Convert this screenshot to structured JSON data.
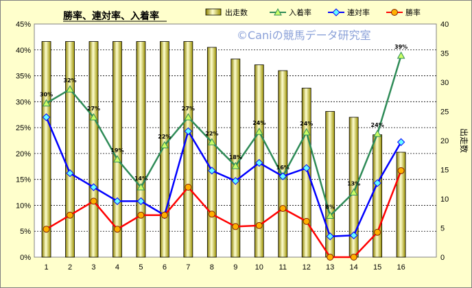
{
  "chart_data": {
    "type": "bar+line",
    "title": "勝率、連対率、入着率",
    "watermark": "©Caniの競馬データ研究室",
    "categories": [
      "1",
      "2",
      "3",
      "4",
      "5",
      "6",
      "7",
      "8",
      "9",
      "10",
      "11",
      "12",
      "13",
      "14",
      "15",
      "16"
    ],
    "bar_series": {
      "name": "出走数",
      "axis": "right",
      "values": [
        37,
        37,
        37,
        37,
        37,
        37,
        37,
        36,
        34,
        33,
        32,
        29,
        25,
        24,
        21,
        18
      ],
      "color": "#f0e68c"
    },
    "line_series": [
      {
        "name": "入着率",
        "color": "#2e8b57",
        "marker": "triangle",
        "values": [
          29.7,
          32.4,
          27.0,
          18.9,
          13.5,
          21.6,
          27.0,
          22.2,
          17.6,
          24.2,
          15.6,
          24.1,
          8.0,
          12.5,
          23.8,
          38.9
        ],
        "data_labels": [
          "30%",
          "32%",
          "27%",
          "19%",
          "14%",
          "22%",
          "27%",
          "22%",
          "18%",
          "24%",
          "16%",
          "24%",
          "8%",
          "13%",
          "24%",
          "39%"
        ]
      },
      {
        "name": "連対率",
        "color": "#0000ff",
        "marker": "diamond",
        "values": [
          27.0,
          16.2,
          13.5,
          10.8,
          10.8,
          8.1,
          24.3,
          16.7,
          14.7,
          18.2,
          15.6,
          17.2,
          4.0,
          4.2,
          14.3,
          22.2
        ]
      },
      {
        "name": "勝率",
        "color": "#ff0000",
        "marker": "circle",
        "values": [
          5.4,
          8.1,
          10.8,
          5.4,
          8.1,
          8.1,
          13.5,
          8.3,
          5.9,
          6.1,
          9.4,
          6.9,
          0.0,
          0.0,
          4.8,
          16.7
        ]
      }
    ],
    "y_left": {
      "min": 0,
      "max": 45,
      "step": 5,
      "format": "percent"
    },
    "y_right": {
      "label": "出走数",
      "min": 0,
      "max": 40,
      "step": 5
    },
    "legend": [
      "出走数",
      "入着率",
      "連対率",
      "勝率"
    ],
    "legend_position": "top-right",
    "grid": true
  }
}
